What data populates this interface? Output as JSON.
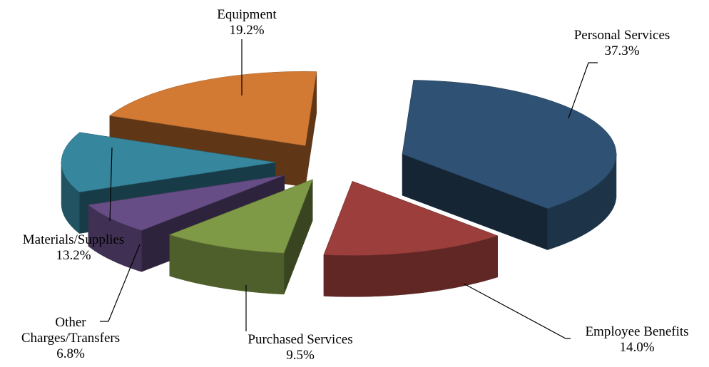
{
  "chart_data": {
    "type": "pie",
    "style": "3d-exploded",
    "title": "",
    "slices": [
      {
        "label": "Personal Services",
        "value": 37.3,
        "display_value": "37.3%",
        "color": "#2f5274"
      },
      {
        "label": "Employee Benefits",
        "value": 14.0,
        "display_value": "14.0%",
        "color": "#9c3f3c"
      },
      {
        "label": "Purchased Services",
        "value": 9.5,
        "display_value": "9.5%",
        "color": "#7f9a46"
      },
      {
        "label": "Other Charges/Transfers",
        "label_lines": [
          "Other",
          "Charges/Transfers"
        ],
        "value": 6.8,
        "display_value": "6.8%",
        "color": "#674d86"
      },
      {
        "label": "Materials/Supplies",
        "value": 13.2,
        "display_value": "13.2%",
        "color": "#36869e"
      },
      {
        "label": "Equipment",
        "value": 19.2,
        "display_value": "19.2%",
        "color": "#d27a34"
      }
    ]
  }
}
